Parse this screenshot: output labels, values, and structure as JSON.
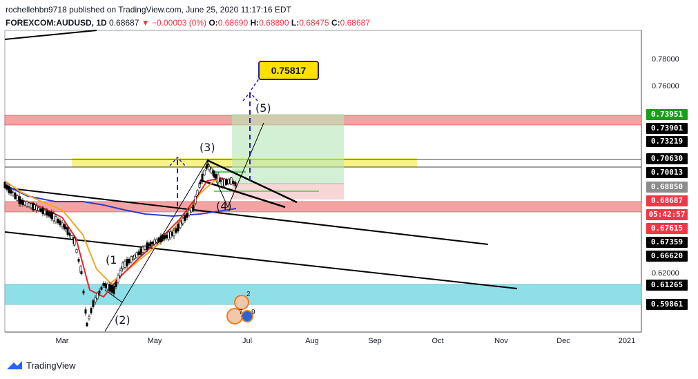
{
  "header": {
    "published_line": "rochellehbn9718 published on TradingView.com, June 25, 2020 11:17:16 EDT",
    "symbol": "FOREXCOM:AUDUSD, 1D",
    "last": "0.68687",
    "change": "−0.00003 (0%)",
    "ohlc": {
      "o_label": "O:",
      "o": "0.68690",
      "h_label": "H:",
      "h": "0.68890",
      "l_label": "L:",
      "l": "0.68475",
      "c_label": "C:",
      "c": "0.68687"
    }
  },
  "price_axis": {
    "ticks": [
      "0.78000",
      "0.76000",
      "0.62000"
    ],
    "labels": [
      {
        "text": "0.73951",
        "color": "#1a9e1a"
      },
      {
        "text": "0.73901",
        "color": "#000000"
      },
      {
        "text": "0.73219",
        "color": "#000000"
      },
      {
        "text": "0.70630",
        "color": "#000000"
      },
      {
        "text": "0.70013",
        "color": "#000000"
      },
      {
        "text": "0.68850",
        "color": "#8c8c8c"
      },
      {
        "text": "0.68687",
        "color": "#f23645"
      },
      {
        "text": "05:42:57",
        "color": "#f23645"
      },
      {
        "text": "0.67615",
        "color": "#f23645"
      },
      {
        "text": "0.67359",
        "color": "#000000"
      },
      {
        "text": "0.66620",
        "color": "#000000"
      },
      {
        "text": "0.61265",
        "color": "#000000"
      },
      {
        "text": "0.59861",
        "color": "#000000"
      }
    ]
  },
  "time_axis": {
    "ticks": [
      "Mar",
      "May",
      "Jul",
      "Aug",
      "Sep",
      "Oct",
      "Nov",
      "Dec",
      "2021"
    ]
  },
  "annotations": {
    "target_label": "0.75817",
    "waves": [
      "(1",
      "(2)",
      "(3)",
      "(4)",
      "(5)"
    ],
    "event_counts": [
      "2",
      "7",
      "9"
    ]
  },
  "footer": {
    "brand": "TradingView"
  },
  "colors": {
    "red_zone": "#f4a3a3",
    "yellow_zone": "#f7f27a",
    "cyan_zone": "#8fdfe8",
    "green_box": "#b8e6b8",
    "sma_blue": "#2d3ccf",
    "ema_purple": "#8a3bd1",
    "ema_orange": "#f5a623",
    "ema_red": "#e0262d"
  }
}
